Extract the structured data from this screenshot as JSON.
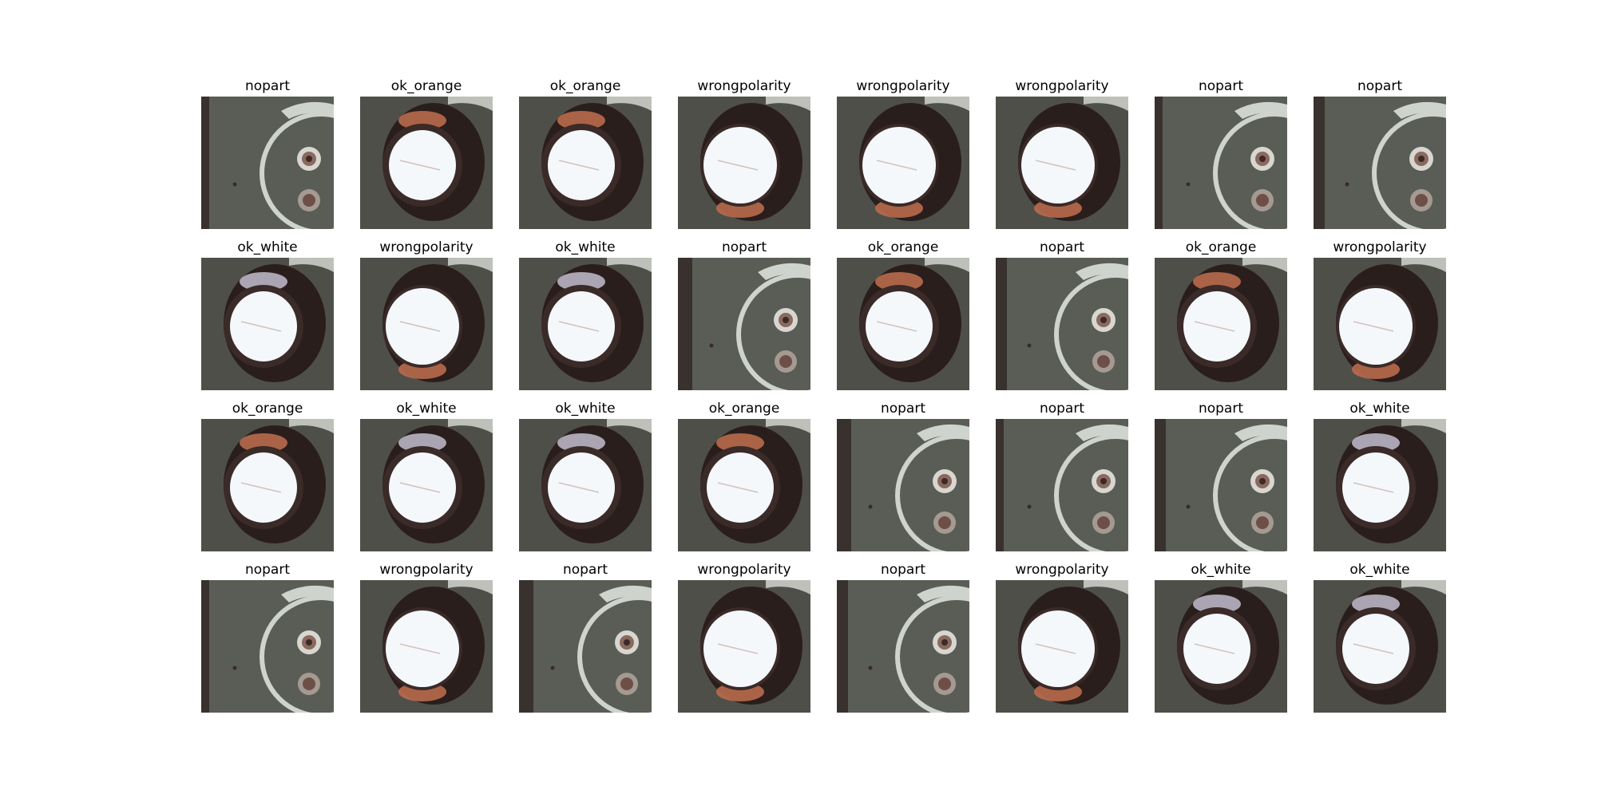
{
  "figure": {
    "cells": [
      {
        "label": "nopart",
        "kind": "nopart"
      },
      {
        "label": "ok_orange",
        "kind": "orange"
      },
      {
        "label": "ok_orange",
        "kind": "orange"
      },
      {
        "label": "wrongpolarity",
        "kind": "wrong"
      },
      {
        "label": "wrongpolarity",
        "kind": "wrong"
      },
      {
        "label": "wrongpolarity",
        "kind": "wrong"
      },
      {
        "label": "nopart",
        "kind": "nopart"
      },
      {
        "label": "nopart",
        "kind": "nopart"
      },
      {
        "label": "ok_white",
        "kind": "white"
      },
      {
        "label": "wrongpolarity",
        "kind": "wrong"
      },
      {
        "label": "ok_white",
        "kind": "white"
      },
      {
        "label": "nopart",
        "kind": "nopart"
      },
      {
        "label": "ok_orange",
        "kind": "orange"
      },
      {
        "label": "nopart",
        "kind": "nopart"
      },
      {
        "label": "ok_orange",
        "kind": "orange"
      },
      {
        "label": "wrongpolarity",
        "kind": "wrong"
      },
      {
        "label": "ok_orange",
        "kind": "orange"
      },
      {
        "label": "ok_white",
        "kind": "white"
      },
      {
        "label": "ok_white",
        "kind": "white"
      },
      {
        "label": "ok_orange",
        "kind": "orange"
      },
      {
        "label": "nopart",
        "kind": "nopart"
      },
      {
        "label": "nopart",
        "kind": "nopart"
      },
      {
        "label": "nopart",
        "kind": "nopart"
      },
      {
        "label": "ok_white",
        "kind": "white"
      },
      {
        "label": "nopart",
        "kind": "nopart"
      },
      {
        "label": "wrongpolarity",
        "kind": "wrong"
      },
      {
        "label": "nopart",
        "kind": "nopart"
      },
      {
        "label": "wrongpolarity",
        "kind": "wrong"
      },
      {
        "label": "nopart",
        "kind": "nopart"
      },
      {
        "label": "wrongpolarity",
        "kind": "wrong"
      },
      {
        "label": "ok_white",
        "kind": "white"
      },
      {
        "label": "ok_white",
        "kind": "white"
      }
    ]
  },
  "colors": {
    "board": "#5a5d56",
    "board_dark": "#3f413b",
    "silkscreen": "#cfd3cd",
    "pad": "#8a6a5e",
    "cap_top": "#f4f8fb",
    "cap_body": "#2a1e1c",
    "sleeve_orange": "#b86a4c",
    "sleeve_white": "#b9b2c4"
  }
}
